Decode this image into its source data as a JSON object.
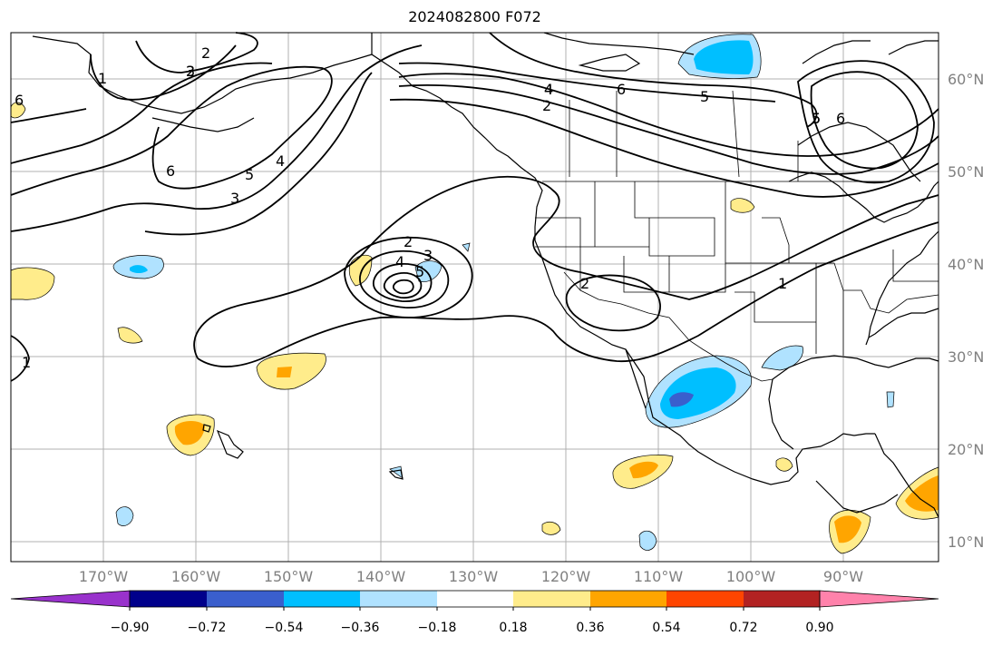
{
  "title": "2024082800 F072",
  "lat_labels": [
    "60°N",
    "50°N",
    "40°N",
    "30°N",
    "20°N",
    "10°N"
  ],
  "lon_labels": [
    "170°W",
    "160°W",
    "150°W",
    "140°W",
    "130°W",
    "120°W",
    "110°W",
    "100°W",
    "90°W"
  ],
  "contour_labels": [
    "2",
    "3",
    "4",
    "5",
    "6",
    "1",
    "2",
    "3",
    "4",
    "5",
    "6",
    "2",
    "3",
    "4",
    "5",
    "2",
    "4",
    "6",
    "5",
    "2",
    "1",
    "5",
    "6",
    "1"
  ],
  "colorbar": {
    "ticks": [
      "−0.90",
      "−0.72",
      "−0.54",
      "−0.36",
      "−0.18",
      "0.18",
      "0.36",
      "0.54",
      "0.72",
      "0.90"
    ],
    "colors": [
      "#9932cc",
      "#00008b",
      "#3a5fcd",
      "#00bfff",
      "#b0e2ff",
      "#ffffff",
      "#ffec8b",
      "#ffa500",
      "#ff4500",
      "#b22222",
      "#ff82ab"
    ]
  },
  "colors": {
    "grid": "#b0b0b0",
    "coast": "#000000",
    "contour": "#000000",
    "axis_label": "#808080"
  }
}
